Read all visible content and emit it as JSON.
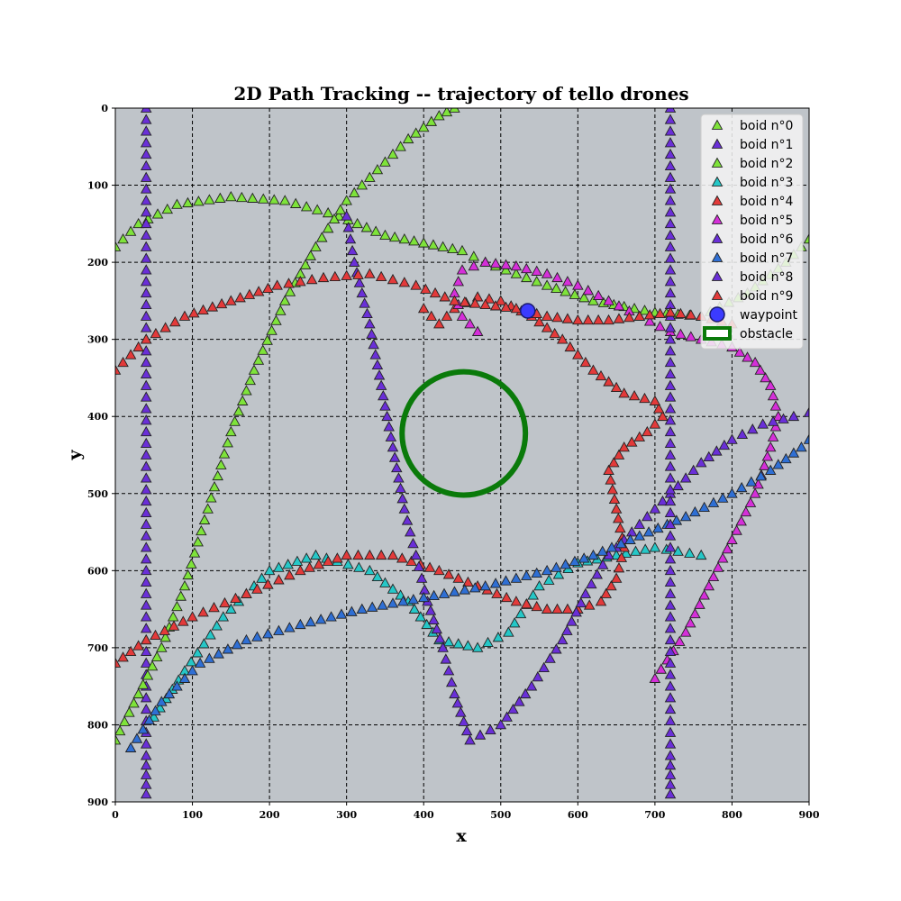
{
  "chart_data": {
    "type": "scatter",
    "title": "2D Path Tracking -- trajectory of tello drones",
    "xlabel": "x",
    "ylabel": "y",
    "xlim": [
      0,
      900
    ],
    "ylim": [
      900,
      0
    ],
    "y_inverted": true,
    "grid": true,
    "grid_style": "dashed",
    "background": "#bfc4c9",
    "xticks": [
      0,
      100,
      200,
      300,
      400,
      500,
      600,
      700,
      800,
      900
    ],
    "yticks": [
      0,
      100,
      200,
      300,
      400,
      500,
      600,
      700,
      800,
      900
    ],
    "legend_position": "top-right",
    "marker": "triangle-up",
    "series": [
      {
        "name": "boid n°0",
        "color": "#7ee33a",
        "points": [
          [
            0,
            180
          ],
          [
            30,
            150
          ],
          [
            80,
            125
          ],
          [
            150,
            115
          ],
          [
            220,
            120
          ],
          [
            290,
            140
          ],
          [
            350,
            165
          ],
          [
            400,
            175
          ],
          [
            450,
            185
          ],
          [
            480,
            200
          ],
          [
            520,
            215
          ],
          [
            560,
            230
          ],
          [
            620,
            250
          ],
          [
            700,
            265
          ],
          [
            760,
            270
          ],
          [
            820,
            240
          ],
          [
            870,
            200
          ],
          [
            900,
            170
          ]
        ]
      },
      {
        "name": "boid n°1",
        "color": "#6a2fd8",
        "points": [
          [
            40,
            0
          ],
          [
            40,
            60
          ],
          [
            40,
            120
          ],
          [
            40,
            180
          ],
          [
            40,
            240
          ],
          [
            40,
            300
          ],
          [
            40,
            360
          ],
          [
            40,
            420
          ],
          [
            40,
            480
          ],
          [
            40,
            540
          ],
          [
            40,
            600
          ],
          [
            40,
            660
          ],
          [
            40,
            720
          ],
          [
            40,
            780
          ],
          [
            40,
            840
          ],
          [
            40,
            890
          ]
        ]
      },
      {
        "name": "boid n°2",
        "color": "#7ee33a",
        "points": [
          [
            0,
            820
          ],
          [
            30,
            760
          ],
          [
            60,
            700
          ],
          [
            90,
            620
          ],
          [
            120,
            520
          ],
          [
            150,
            420
          ],
          [
            180,
            340
          ],
          [
            220,
            250
          ],
          [
            260,
            180
          ],
          [
            300,
            120
          ],
          [
            340,
            80
          ],
          [
            380,
            40
          ],
          [
            420,
            10
          ],
          [
            440,
            0
          ]
        ]
      },
      {
        "name": "boid n°3",
        "color": "#25c7c7",
        "points": [
          [
            50,
            790
          ],
          [
            90,
            730
          ],
          [
            140,
            660
          ],
          [
            200,
            600
          ],
          [
            260,
            580
          ],
          [
            330,
            600
          ],
          [
            380,
            640
          ],
          [
            420,
            690
          ],
          [
            470,
            700
          ],
          [
            510,
            680
          ],
          [
            550,
            620
          ],
          [
            600,
            590
          ],
          [
            650,
            580
          ],
          [
            700,
            570
          ],
          [
            760,
            580
          ]
        ]
      },
      {
        "name": "boid n°4",
        "color": "#e33a3a",
        "points": [
          [
            0,
            720
          ],
          [
            40,
            690
          ],
          [
            100,
            660
          ],
          [
            170,
            630
          ],
          [
            240,
            600
          ],
          [
            300,
            580
          ],
          [
            360,
            580
          ],
          [
            420,
            600
          ],
          [
            470,
            620
          ],
          [
            520,
            640
          ],
          [
            560,
            650
          ],
          [
            600,
            650
          ],
          [
            630,
            640
          ],
          [
            650,
            610
          ],
          [
            660,
            570
          ],
          [
            650,
            520
          ],
          [
            640,
            470
          ],
          [
            660,
            440
          ],
          [
            690,
            420
          ],
          [
            710,
            400
          ],
          [
            700,
            380
          ],
          [
            660,
            370
          ],
          [
            620,
            340
          ],
          [
            580,
            300
          ],
          [
            540,
            270
          ],
          [
            500,
            250
          ],
          [
            470,
            245
          ],
          [
            440,
            260
          ],
          [
            420,
            280
          ],
          [
            400,
            260
          ]
        ]
      },
      {
        "name": "boid n°5",
        "color": "#d52fd9",
        "points": [
          [
            700,
            740
          ],
          [
            740,
            680
          ],
          [
            770,
            620
          ],
          [
            800,
            560
          ],
          [
            830,
            500
          ],
          [
            850,
            440
          ],
          [
            860,
            400
          ],
          [
            850,
            360
          ],
          [
            830,
            330
          ],
          [
            800,
            310
          ],
          [
            760,
            300
          ],
          [
            720,
            290
          ],
          [
            680,
            270
          ],
          [
            640,
            250
          ],
          [
            600,
            230
          ],
          [
            560,
            215
          ],
          [
            520,
            205
          ],
          [
            480,
            200
          ],
          [
            450,
            210
          ],
          [
            440,
            240
          ],
          [
            450,
            270
          ],
          [
            470,
            290
          ]
        ]
      },
      {
        "name": "boid n°6",
        "color": "#6a2fd8",
        "points": [
          [
            300,
            140
          ],
          [
            310,
            200
          ],
          [
            330,
            280
          ],
          [
            345,
            360
          ],
          [
            360,
            440
          ],
          [
            375,
            520
          ],
          [
            390,
            580
          ],
          [
            405,
            640
          ],
          [
            425,
            700
          ],
          [
            440,
            760
          ],
          [
            460,
            820
          ],
          [
            500,
            800
          ],
          [
            540,
            750
          ],
          [
            580,
            690
          ],
          [
            610,
            630
          ],
          [
            640,
            580
          ],
          [
            680,
            540
          ],
          [
            720,
            500
          ],
          [
            760,
            460
          ],
          [
            800,
            430
          ],
          [
            840,
            410
          ],
          [
            880,
            400
          ],
          [
            900,
            395
          ]
        ]
      },
      {
        "name": "boid n°7",
        "color": "#2f6fd4",
        "points": [
          [
            20,
            830
          ],
          [
            60,
            770
          ],
          [
            110,
            720
          ],
          [
            170,
            690
          ],
          [
            240,
            670
          ],
          [
            320,
            650
          ],
          [
            400,
            635
          ],
          [
            480,
            620
          ],
          [
            560,
            600
          ],
          [
            620,
            580
          ],
          [
            680,
            555
          ],
          [
            740,
            530
          ],
          [
            800,
            500
          ],
          [
            850,
            470
          ],
          [
            890,
            440
          ],
          [
            900,
            430
          ]
        ]
      },
      {
        "name": "boid n°8",
        "color": "#6a2fd8",
        "points": [
          [
            720,
            0
          ],
          [
            720,
            60
          ],
          [
            720,
            120
          ],
          [
            720,
            180
          ],
          [
            720,
            240
          ],
          [
            720,
            300
          ],
          [
            720,
            360
          ],
          [
            720,
            420
          ],
          [
            720,
            480
          ],
          [
            720,
            540
          ],
          [
            720,
            600
          ],
          [
            720,
            660
          ],
          [
            720,
            720
          ],
          [
            720,
            780
          ],
          [
            720,
            840
          ],
          [
            720,
            890
          ]
        ]
      },
      {
        "name": "boid n°9",
        "color": "#e33a3a",
        "points": [
          [
            0,
            340
          ],
          [
            40,
            300
          ],
          [
            90,
            270
          ],
          [
            150,
            250
          ],
          [
            210,
            230
          ],
          [
            270,
            220
          ],
          [
            330,
            215
          ],
          [
            390,
            230
          ],
          [
            440,
            250
          ],
          [
            480,
            255
          ],
          [
            520,
            260
          ],
          [
            560,
            270
          ],
          [
            600,
            275
          ],
          [
            640,
            275
          ],
          [
            680,
            270
          ],
          [
            720,
            265
          ],
          [
            760,
            270
          ],
          [
            800,
            280
          ]
        ]
      },
      {
        "name": "waypoint",
        "color": "#3b3bff",
        "points": [
          [
            535,
            263
          ]
        ]
      }
    ],
    "obstacle": {
      "name": "obstacle",
      "color": "#0a7a0a",
      "center": [
        452,
        422
      ],
      "radius": 80
    }
  }
}
